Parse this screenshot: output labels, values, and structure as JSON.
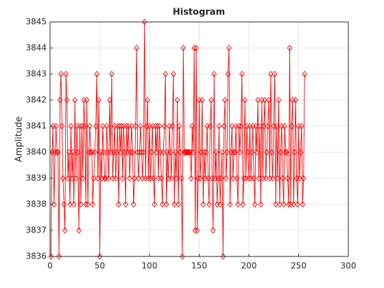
{
  "chart_data": {
    "type": "line",
    "title": "Histogram",
    "y_label": "Amplitude",
    "xlim": [
      0,
      300
    ],
    "xticks": [
      0,
      50,
      100,
      150,
      200,
      250,
      300
    ],
    "ylim": [
      3836,
      3845
    ],
    "yticks": [
      3836,
      3837,
      3838,
      3839,
      3840,
      3841,
      3842,
      3843,
      3844,
      3845
    ],
    "grid": true,
    "marker": "diamond",
    "x": [
      1,
      2,
      3,
      4,
      5,
      6,
      7,
      8,
      9,
      10,
      11,
      12,
      13,
      14,
      15,
      16,
      17,
      18,
      19,
      20,
      21,
      22,
      23,
      24,
      25,
      26,
      27,
      28,
      29,
      30,
      31,
      32,
      33,
      34,
      35,
      36,
      37,
      38,
      39,
      40,
      41,
      42,
      43,
      44,
      45,
      46,
      47,
      48,
      49,
      50,
      51,
      52,
      53,
      54,
      55,
      56,
      57,
      58,
      59,
      60,
      61,
      62,
      63,
      64,
      65,
      66,
      67,
      68,
      69,
      70,
      71,
      72,
      73,
      74,
      75,
      76,
      77,
      78,
      79,
      80,
      81,
      82,
      83,
      84,
      85,
      86,
      87,
      88,
      89,
      90,
      91,
      92,
      93,
      94,
      95,
      96,
      97,
      98,
      99,
      100,
      101,
      102,
      103,
      104,
      105,
      106,
      107,
      108,
      109,
      110,
      111,
      112,
      113,
      114,
      115,
      116,
      117,
      118,
      119,
      120,
      121,
      122,
      123,
      124,
      125,
      126,
      127,
      128,
      129,
      130,
      131,
      132,
      133,
      134,
      135,
      136,
      137,
      138,
      139,
      140,
      141,
      142,
      143,
      144,
      145,
      146,
      147,
      148,
      149,
      150,
      151,
      152,
      153,
      154,
      155,
      156,
      157,
      158,
      159,
      160,
      161,
      162,
      163,
      164,
      165,
      166,
      167,
      168,
      169,
      170,
      171,
      172,
      173,
      174,
      175,
      176,
      177,
      178,
      179,
      180,
      181,
      182,
      183,
      184,
      185,
      186,
      187,
      188,
      189,
      190,
      191,
      192,
      193,
      194,
      195,
      196,
      197,
      198,
      199,
      200,
      201,
      202,
      203,
      204,
      205,
      206,
      207,
      208,
      209,
      210,
      211,
      212,
      213,
      214,
      215,
      216,
      217,
      218,
      219,
      220,
      221,
      222,
      223,
      224,
      225,
      226,
      227,
      228,
      229,
      230,
      231,
      232,
      233,
      234,
      235,
      236,
      237,
      238,
      239,
      240,
      241,
      242,
      243,
      244,
      245,
      246,
      247,
      248,
      249,
      250,
      251,
      252,
      253,
      254,
      255,
      256
    ],
    "series": [
      {
        "color": "#ff0000",
        "values": [
          3836,
          3840,
          3841,
          3838,
          3840,
          3841,
          3840,
          3840,
          3836,
          3842,
          3843,
          3841,
          3839,
          3838,
          3837,
          3843,
          3842,
          3839,
          3840,
          3838,
          3841,
          3839,
          3840,
          3838,
          3842,
          3839,
          3841,
          3840,
          3837,
          3841,
          3838,
          3841,
          3839,
          3842,
          3841,
          3838,
          3842,
          3838,
          3840,
          3841,
          3840,
          3840,
          3838,
          3839,
          3840,
          3841,
          3843,
          3839,
          3842,
          3836,
          3840,
          3839,
          3841,
          3840,
          3839,
          3839,
          3841,
          3840,
          3839,
          3842,
          3840,
          3843,
          3839,
          3840,
          3841,
          3839,
          3840,
          3841,
          3838,
          3841,
          3840,
          3841,
          3839,
          3841,
          3840,
          3838,
          3841,
          3840,
          3841,
          3839,
          3840,
          3841,
          3840,
          3838,
          3839,
          3841,
          3844,
          3840,
          3839,
          3840,
          3841,
          3840,
          3839,
          3840,
          3845,
          3839,
          3841,
          3842,
          3839,
          3841,
          3839,
          3840,
          3841,
          3839,
          3838,
          3841,
          3840,
          3841,
          3839,
          3841,
          3840,
          3839,
          3838,
          3840,
          3841,
          3843,
          3838,
          3840,
          3839,
          3841,
          3840,
          3839,
          3841,
          3843,
          3838,
          3840,
          3839,
          3842,
          3838,
          3841,
          3840,
          3839,
          3836,
          3844,
          3840,
          3840,
          3840,
          3840,
          3840,
          3840,
          3840,
          3839,
          3841,
          3840,
          3844,
          3837,
          3844,
          3837,
          3839,
          3842,
          3839,
          3840,
          3842,
          3838,
          3840,
          3839,
          3840,
          3841,
          3839,
          3838,
          3841,
          3842,
          3839,
          3837,
          3843,
          3839,
          3840,
          3838,
          3839,
          3841,
          3838,
          3839,
          3840,
          3836,
          3841,
          3842,
          3839,
          3840,
          3843,
          3844,
          3838,
          3840,
          3841,
          3839,
          3840,
          3840,
          3841,
          3839,
          3838,
          3841,
          3840,
          3841,
          3843,
          3838,
          3839,
          3842,
          3839,
          3841,
          3840,
          3839,
          3841,
          3839,
          3840,
          3841,
          3839,
          3838,
          3841,
          3840,
          3842,
          3839,
          3841,
          3838,
          3842,
          3839,
          3841,
          3842,
          3839,
          3840,
          3841,
          3842,
          3839,
          3843,
          3840,
          3839,
          3841,
          3843,
          3838,
          3841,
          3839,
          3842,
          3838,
          3840,
          3841,
          3839,
          3838,
          3841,
          3840,
          3840,
          3839,
          3838,
          3844,
          3838,
          3841,
          3842,
          3838,
          3840,
          3842,
          3839,
          3838,
          3841,
          3839,
          3840,
          3841,
          3838,
          3839,
          3843
        ]
      }
    ]
  }
}
